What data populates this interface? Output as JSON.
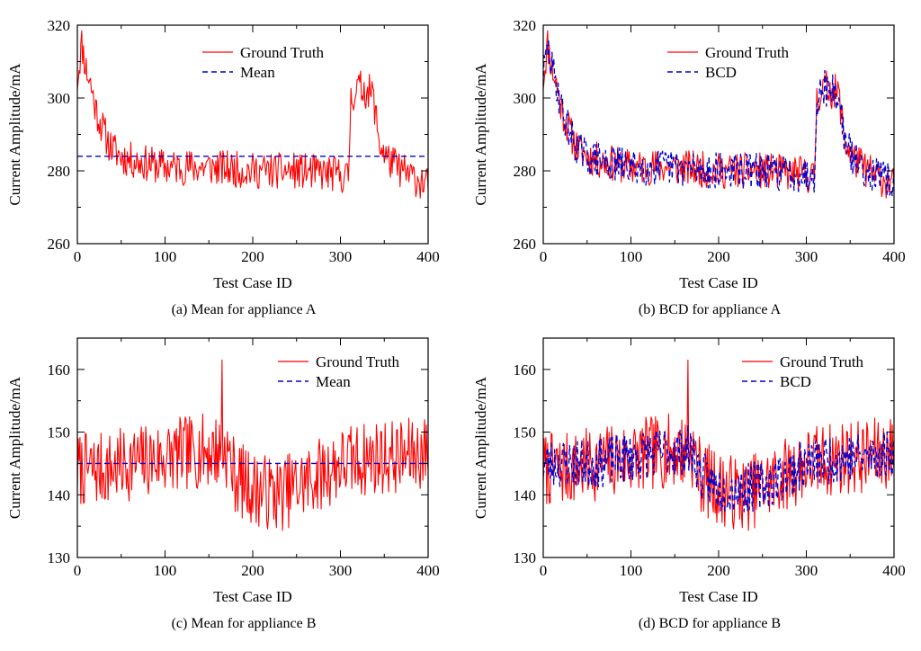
{
  "chart_data": [
    {
      "type": "line",
      "panel_id": "a",
      "caption": "(a)   Mean for appliance A",
      "xlabel": "Test Case ID",
      "ylabel": "Current Amplitude/mA",
      "xlim": [
        0,
        400
      ],
      "ylim": [
        260,
        320
      ],
      "xticks": [
        0,
        100,
        200,
        300,
        400
      ],
      "yticks": [
        260,
        280,
        300,
        320
      ],
      "grid": false,
      "legend_position": "top-center",
      "series": [
        {
          "name": "Ground Truth",
          "style": "solid",
          "color": "#ff0000",
          "anchors": [
            [
              0,
              305
            ],
            [
              5,
              315
            ],
            [
              10,
              308
            ],
            [
              15,
              304
            ],
            [
              20,
              298
            ],
            [
              25,
              294
            ],
            [
              30,
              291
            ],
            [
              35,
              288
            ],
            [
              40,
              286
            ],
            [
              45,
              285
            ],
            [
              50,
              284
            ],
            [
              60,
              283
            ],
            [
              80,
              282
            ],
            [
              100,
              281
            ],
            [
              150,
              281
            ],
            [
              200,
              280
            ],
            [
              250,
              280
            ],
            [
              300,
              279
            ],
            [
              309,
              278
            ],
            [
              312,
              300
            ],
            [
              320,
              303
            ],
            [
              330,
              302
            ],
            [
              337,
              301
            ],
            [
              345,
              287
            ],
            [
              355,
              283
            ],
            [
              370,
              280
            ],
            [
              385,
              278
            ],
            [
              400,
              276
            ]
          ],
          "noise_amplitude": 5,
          "seed": 11
        },
        {
          "name": "Mean",
          "style": "dashed",
          "color": "#0000cc",
          "anchors": [
            [
              0,
              284
            ],
            [
              400,
              284
            ]
          ],
          "noise_amplitude": 0
        }
      ]
    },
    {
      "type": "line",
      "panel_id": "b",
      "caption": "(b)   BCD for appliance A",
      "xlabel": "Test Case ID",
      "ylabel": "Current Amplitude/mA",
      "xlim": [
        0,
        400
      ],
      "ylim": [
        260,
        320
      ],
      "xticks": [
        0,
        100,
        200,
        300,
        400
      ],
      "yticks": [
        260,
        280,
        300,
        320
      ],
      "grid": false,
      "legend_position": "top-center",
      "series": [
        {
          "name": "Ground Truth",
          "style": "solid",
          "color": "#ff0000",
          "anchors": [
            [
              0,
              305
            ],
            [
              5,
              315
            ],
            [
              10,
              308
            ],
            [
              15,
              304
            ],
            [
              20,
              298
            ],
            [
              25,
              294
            ],
            [
              30,
              291
            ],
            [
              35,
              288
            ],
            [
              40,
              286
            ],
            [
              45,
              285
            ],
            [
              50,
              284
            ],
            [
              60,
              283
            ],
            [
              80,
              282
            ],
            [
              100,
              281
            ],
            [
              150,
              281
            ],
            [
              200,
              280
            ],
            [
              250,
              280
            ],
            [
              300,
              279
            ],
            [
              309,
              278
            ],
            [
              312,
              300
            ],
            [
              320,
              303
            ],
            [
              330,
              302
            ],
            [
              337,
              301
            ],
            [
              345,
              287
            ],
            [
              355,
              283
            ],
            [
              370,
              280
            ],
            [
              385,
              278
            ],
            [
              400,
              276
            ]
          ],
          "noise_amplitude": 5,
          "seed": 11
        },
        {
          "name": "BCD",
          "style": "dashed",
          "color": "#0000cc",
          "anchors": [
            [
              0,
              306
            ],
            [
              5,
              314
            ],
            [
              10,
              308
            ],
            [
              15,
              304
            ],
            [
              20,
              298
            ],
            [
              25,
              294
            ],
            [
              30,
              291
            ],
            [
              35,
              288
            ],
            [
              40,
              286
            ],
            [
              45,
              285
            ],
            [
              50,
              284
            ],
            [
              60,
              283
            ],
            [
              80,
              282
            ],
            [
              100,
              281
            ],
            [
              150,
              281
            ],
            [
              200,
              280
            ],
            [
              250,
              280
            ],
            [
              300,
              279
            ],
            [
              309,
              279
            ],
            [
              312,
              300
            ],
            [
              320,
              303
            ],
            [
              330,
              302
            ],
            [
              337,
              300
            ],
            [
              345,
              287
            ],
            [
              355,
              283
            ],
            [
              370,
              280
            ],
            [
              385,
              278
            ],
            [
              400,
              277
            ]
          ],
          "noise_amplitude": 5,
          "seed": 29
        }
      ]
    },
    {
      "type": "line",
      "panel_id": "c",
      "caption": "(c)   Mean for appliance B",
      "xlabel": "Test Case ID",
      "ylabel": "Current Amplitude/mA",
      "xlim": [
        0,
        400
      ],
      "ylim": [
        130,
        165
      ],
      "xticks": [
        0,
        100,
        200,
        300,
        400
      ],
      "yticks": [
        130,
        140,
        150,
        160
      ],
      "grid": false,
      "legend_position": "top-right",
      "series": [
        {
          "name": "Ground Truth",
          "style": "solid",
          "color": "#ff0000",
          "anchors": [
            [
              0,
              144
            ],
            [
              30,
              144
            ],
            [
              60,
              145
            ],
            [
              100,
              146
            ],
            [
              140,
              147
            ],
            [
              170,
              147
            ],
            [
              180,
              143
            ],
            [
              200,
              141
            ],
            [
              230,
              140
            ],
            [
              260,
              142
            ],
            [
              300,
              145
            ],
            [
              340,
              146
            ],
            [
              370,
              146
            ],
            [
              400,
              147
            ]
          ],
          "noise_amplitude": 6,
          "seed": 7,
          "spike": [
            165,
            161.5
          ]
        },
        {
          "name": "Mean",
          "style": "dashed",
          "color": "#0000cc",
          "anchors": [
            [
              0,
              145
            ],
            [
              400,
              145
            ]
          ],
          "noise_amplitude": 0
        }
      ]
    },
    {
      "type": "line",
      "panel_id": "d",
      "caption": "(d)   BCD for appliance B",
      "xlabel": "Test Case ID",
      "ylabel": "Current Amplitude/mA",
      "xlim": [
        0,
        400
      ],
      "ylim": [
        130,
        165
      ],
      "xticks": [
        0,
        100,
        200,
        300,
        400
      ],
      "yticks": [
        130,
        140,
        150,
        160
      ],
      "grid": false,
      "legend_position": "top-right",
      "series": [
        {
          "name": "Ground Truth",
          "style": "solid",
          "color": "#ff0000",
          "anchors": [
            [
              0,
              144
            ],
            [
              30,
              144
            ],
            [
              60,
              145
            ],
            [
              100,
              146
            ],
            [
              140,
              147
            ],
            [
              170,
              147
            ],
            [
              180,
              143
            ],
            [
              200,
              141
            ],
            [
              230,
              140
            ],
            [
              260,
              142
            ],
            [
              300,
              145
            ],
            [
              340,
              146
            ],
            [
              370,
              146
            ],
            [
              400,
              147
            ]
          ],
          "noise_amplitude": 6,
          "seed": 7,
          "spike": [
            165,
            161.5
          ]
        },
        {
          "name": "BCD",
          "style": "dashed",
          "color": "#0000cc",
          "anchors": [
            [
              0,
              145
            ],
            [
              30,
              145
            ],
            [
              60,
              145
            ],
            [
              100,
              146
            ],
            [
              140,
              147
            ],
            [
              170,
              147
            ],
            [
              180,
              143
            ],
            [
              200,
              141
            ],
            [
              230,
              141
            ],
            [
              260,
              142
            ],
            [
              300,
              145
            ],
            [
              340,
              146
            ],
            [
              370,
              146
            ],
            [
              400,
              147
            ]
          ],
          "noise_amplitude": 4,
          "seed": 23
        }
      ]
    }
  ]
}
